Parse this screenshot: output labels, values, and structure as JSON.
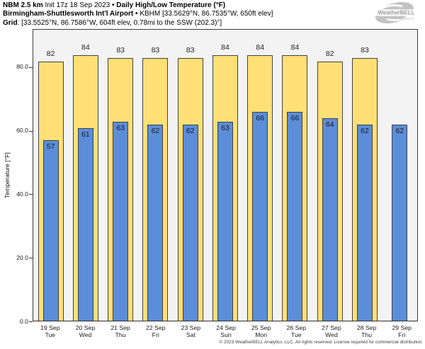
{
  "header": {
    "line1": {
      "model": "NBM 2.5 km",
      "init": "Init 17z 18 Sep 2023",
      "sep": "•",
      "product": "Daily High/Low Temperature (°F)"
    },
    "line2": {
      "station": "Birmingham-Shuttlesworth Int'l Airport",
      "sep": "•",
      "details": "KBHM [33.5629°N, 86.7535°W, 650ft elev]"
    },
    "line3": {
      "label": "Grid",
      "details": ": [33.5525°N, 86.7586°W, 604ft elev, 0.78mi to the SSW (202.3)°]"
    }
  },
  "logo": {
    "brand": "WeatherBELL",
    "sub": "Analytics LLC"
  },
  "chart_data": {
    "type": "bar",
    "title": "NBM 2.5 km Daily High/Low Temperature (°F) — Birmingham-Shuttlesworth Int'l Airport (KBHM)",
    "categories": [
      "19 Sep Tue",
      "20 Sep Wed",
      "21 Sep Thu",
      "22 Sep Fri",
      "23 Sep Sat",
      "24 Sep Sun",
      "25 Sep Mon",
      "26 Sep Tue",
      "27 Sep Wed",
      "28 Sep Thu",
      "29 Sep Fri"
    ],
    "series": [
      {
        "name": "Daily High (°F)",
        "color": "#ffe076",
        "values": [
          82,
          84,
          83,
          83,
          83,
          84,
          84,
          84,
          82,
          83,
          null
        ]
      },
      {
        "name": "Daily Low (°F)",
        "color": "#5b8dd9",
        "values": [
          57,
          61,
          63,
          62,
          62,
          63,
          66,
          66,
          64,
          62,
          62
        ]
      }
    ],
    "xlabel": "",
    "ylabel": "Temperature [°F]",
    "yticks": [
      0,
      20,
      40,
      60,
      80
    ],
    "ytick_labels": [
      "0.0",
      "20.0",
      "40.0",
      "60.0",
      "80.0"
    ],
    "ylim": [
      0,
      92
    ],
    "grid": false,
    "legend": "none",
    "plot_background": "#f3f3f3",
    "bar_edge_color": "#424242"
  },
  "footer": {
    "copyright": "© 2023 WeatherBELL Analytics, LLC. All rights reserved. License required for commercial distribution."
  }
}
